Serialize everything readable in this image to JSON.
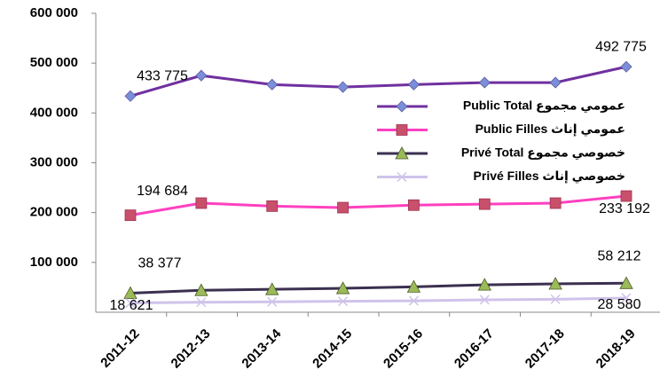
{
  "chart_data": {
    "type": "line",
    "categories": [
      "2011-12",
      "2012-13",
      "2013-14",
      "2014-15",
      "2015-16",
      "2016-17",
      "2017-18",
      "2018-19"
    ],
    "series": [
      {
        "name": "عمومي مجموع Public Total",
        "color": "#7030a0",
        "marker": "diamond",
        "marker_color": "#7b8ed8",
        "values": [
          433775,
          475000,
          457000,
          452000,
          457000,
          461000,
          461000,
          492775
        ],
        "value_labels": [
          "433 775",
          null,
          null,
          null,
          null,
          null,
          null,
          "492 775"
        ]
      },
      {
        "name": "عمومي إناث Public Filles",
        "color": "#ff40c0",
        "marker": "square",
        "marker_color": "#c8506a",
        "values": [
          194684,
          219000,
          213000,
          210000,
          215000,
          217000,
          219000,
          233192
        ],
        "value_labels": [
          "194 684",
          null,
          null,
          null,
          null,
          null,
          null,
          "233 192"
        ]
      },
      {
        "name": "خصوصي مجموع Privé Total",
        "color": "#3b3050",
        "marker": "triangle",
        "marker_color": "#9bbb59",
        "values": [
          38377,
          44000,
          46000,
          48000,
          51000,
          55000,
          57000,
          58212
        ],
        "value_labels": [
          "38 377",
          null,
          null,
          null,
          null,
          null,
          null,
          "58 212"
        ]
      },
      {
        "name": "خصوصي إناث Privé Filles",
        "color": "#cfc3ea",
        "marker": "x",
        "marker_color": "#cfc3ea",
        "values": [
          18621,
          20000,
          21000,
          22000,
          23000,
          25000,
          26000,
          28580
        ],
        "value_labels": [
          "18 621",
          null,
          null,
          null,
          null,
          null,
          null,
          "28 580"
        ]
      }
    ],
    "ylim": [
      0,
      600000
    ],
    "yticks": [
      {
        "value": 100000,
        "label": "100 000"
      },
      {
        "value": 200000,
        "label": "200 000"
      },
      {
        "value": 300000,
        "label": "300 000"
      },
      {
        "value": 400000,
        "label": "400 000"
      },
      {
        "value": 500000,
        "label": "500 000"
      },
      {
        "value": 600000,
        "label": "600 000"
      }
    ],
    "grid": false
  }
}
